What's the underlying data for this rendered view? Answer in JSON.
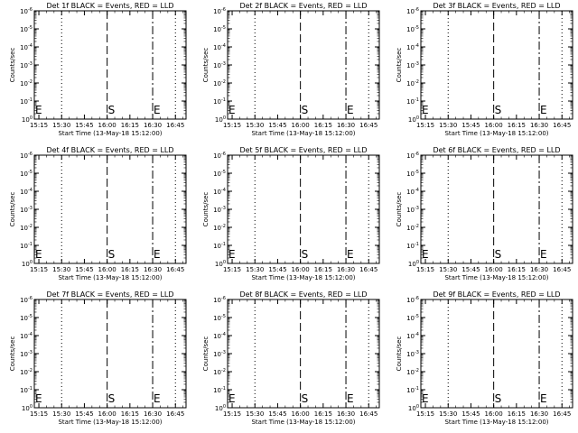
{
  "colors": {
    "background": "#ffffff",
    "ink": "#000000"
  },
  "chart_data": [
    {
      "type": "line",
      "title": "Det 1f BLACK = Events, RED = LLD",
      "xlabel": "Start Time (13-May-18 15:12:00)",
      "ylabel": "Counts/sec",
      "y_scale": "log",
      "ylim": [
        1,
        1e-06
      ],
      "y_ticks": [
        "10^0",
        "10^-1",
        "10^-2",
        "10^-3",
        "10^-4",
        "10^-5",
        "10^-6"
      ],
      "x_ticks": [
        "15:15",
        "15:30",
        "15:45",
        "16:00",
        "16:15",
        "16:30",
        "16:45"
      ],
      "annotations": [
        {
          "label": "E",
          "x": "15:12"
        },
        {
          "label": "S",
          "x": "16:00"
        },
        {
          "label": "E",
          "x": "16:30"
        }
      ],
      "grid": false,
      "series": []
    },
    {
      "type": "line",
      "title": "Det 2f BLACK = Events, RED = LLD",
      "xlabel": "Start Time (13-May-18 15:12:00)",
      "ylabel": "Counts/sec",
      "y_scale": "log",
      "ylim": [
        1,
        1e-06
      ],
      "y_ticks": [
        "10^0",
        "10^-1",
        "10^-2",
        "10^-3",
        "10^-4",
        "10^-5",
        "10^-6"
      ],
      "x_ticks": [
        "15:15",
        "15:30",
        "15:45",
        "16:00",
        "16:15",
        "16:30",
        "16:45"
      ],
      "annotations": [
        {
          "label": "E",
          "x": "15:12"
        },
        {
          "label": "S",
          "x": "16:00"
        },
        {
          "label": "E",
          "x": "16:30"
        }
      ],
      "grid": false,
      "series": []
    },
    {
      "type": "line",
      "title": "Det 3f BLACK = Events, RED = LLD",
      "xlabel": "Start Time (13-May-18 15:12:00)",
      "ylabel": "Counts/sec",
      "y_scale": "log",
      "ylim": [
        1,
        1e-06
      ],
      "y_ticks": [
        "10^0",
        "10^-1",
        "10^-2",
        "10^-3",
        "10^-4",
        "10^-5",
        "10^-6"
      ],
      "x_ticks": [
        "15:15",
        "15:30",
        "15:45",
        "16:00",
        "16:15",
        "16:30",
        "16:45"
      ],
      "annotations": [
        {
          "label": "E",
          "x": "15:12"
        },
        {
          "label": "S",
          "x": "16:00"
        },
        {
          "label": "E",
          "x": "16:30"
        }
      ],
      "grid": false,
      "series": []
    },
    {
      "type": "line",
      "title": "Det 4f BLACK = Events, RED = LLD",
      "xlabel": "Start Time (13-May-18 15:12:00)",
      "ylabel": "Counts/sec",
      "y_scale": "log",
      "ylim": [
        1,
        1e-06
      ],
      "y_ticks": [
        "10^0",
        "10^-1",
        "10^-2",
        "10^-3",
        "10^-4",
        "10^-5",
        "10^-6"
      ],
      "x_ticks": [
        "15:15",
        "15:30",
        "15:45",
        "16:00",
        "16:15",
        "16:30",
        "16:45"
      ],
      "annotations": [
        {
          "label": "E",
          "x": "15:12"
        },
        {
          "label": "S",
          "x": "16:00"
        },
        {
          "label": "E",
          "x": "16:30"
        }
      ],
      "grid": false,
      "series": []
    },
    {
      "type": "line",
      "title": "Det 5f BLACK = Events, RED = LLD",
      "xlabel": "Start Time (13-May-18 15:12:00)",
      "ylabel": "Counts/sec",
      "y_scale": "log",
      "ylim": [
        1,
        1e-06
      ],
      "y_ticks": [
        "10^0",
        "10^-1",
        "10^-2",
        "10^-3",
        "10^-4",
        "10^-5",
        "10^-6"
      ],
      "x_ticks": [
        "15:15",
        "15:30",
        "15:45",
        "16:00",
        "16:15",
        "16:30",
        "16:45"
      ],
      "annotations": [
        {
          "label": "E",
          "x": "15:12"
        },
        {
          "label": "S",
          "x": "16:00"
        },
        {
          "label": "E",
          "x": "16:30"
        }
      ],
      "grid": false,
      "series": []
    },
    {
      "type": "line",
      "title": "Det 6f BLACK = Events, RED = LLD",
      "xlabel": "Start Time (13-May-18 15:12:00)",
      "ylabel": "Counts/sec",
      "y_scale": "log",
      "ylim": [
        1,
        1e-06
      ],
      "y_ticks": [
        "10^0",
        "10^-1",
        "10^-2",
        "10^-3",
        "10^-4",
        "10^-5",
        "10^-6"
      ],
      "x_ticks": [
        "15:15",
        "15:30",
        "15:45",
        "16:00",
        "16:15",
        "16:30",
        "16:45"
      ],
      "annotations": [
        {
          "label": "E",
          "x": "15:12"
        },
        {
          "label": "S",
          "x": "16:00"
        },
        {
          "label": "E",
          "x": "16:30"
        }
      ],
      "grid": false,
      "series": []
    },
    {
      "type": "line",
      "title": "Det 7f BLACK = Events, RED = LLD",
      "xlabel": "Start Time (13-May-18 15:12:00)",
      "ylabel": "Counts/sec",
      "y_scale": "log",
      "ylim": [
        1,
        1e-06
      ],
      "y_ticks": [
        "10^0",
        "10^-1",
        "10^-2",
        "10^-3",
        "10^-4",
        "10^-5",
        "10^-6"
      ],
      "x_ticks": [
        "15:15",
        "15:30",
        "15:45",
        "16:00",
        "16:15",
        "16:30",
        "16:45"
      ],
      "annotations": [
        {
          "label": "E",
          "x": "15:12"
        },
        {
          "label": "S",
          "x": "16:00"
        },
        {
          "label": "E",
          "x": "16:30"
        }
      ],
      "grid": false,
      "series": []
    },
    {
      "type": "line",
      "title": "Det 8f BLACK = Events, RED = LLD",
      "xlabel": "Start Time (13-May-18 15:12:00)",
      "ylabel": "Counts/sec",
      "y_scale": "log",
      "ylim": [
        1,
        1e-06
      ],
      "y_ticks": [
        "10^0",
        "10^-1",
        "10^-2",
        "10^-3",
        "10^-4",
        "10^-5",
        "10^-6"
      ],
      "x_ticks": [
        "15:15",
        "15:30",
        "15:45",
        "16:00",
        "16:15",
        "16:30",
        "16:45"
      ],
      "annotations": [
        {
          "label": "E",
          "x": "15:12"
        },
        {
          "label": "S",
          "x": "16:00"
        },
        {
          "label": "E",
          "x": "16:30"
        }
      ],
      "grid": false,
      "series": []
    },
    {
      "type": "line",
      "title": "Det 9f BLACK = Events, RED = LLD",
      "xlabel": "Start Time (13-May-18 15:12:00)",
      "ylabel": "Counts/sec",
      "y_scale": "log",
      "ylim": [
        1,
        1e-06
      ],
      "y_ticks": [
        "10^0",
        "10^-1",
        "10^-2",
        "10^-3",
        "10^-4",
        "10^-5",
        "10^-6"
      ],
      "x_ticks": [
        "15:15",
        "15:30",
        "15:45",
        "16:00",
        "16:15",
        "16:30",
        "16:45"
      ],
      "annotations": [
        {
          "label": "E",
          "x": "15:12"
        },
        {
          "label": "S",
          "x": "16:00"
        },
        {
          "label": "E",
          "x": "16:30"
        }
      ],
      "grid": false,
      "series": []
    }
  ]
}
